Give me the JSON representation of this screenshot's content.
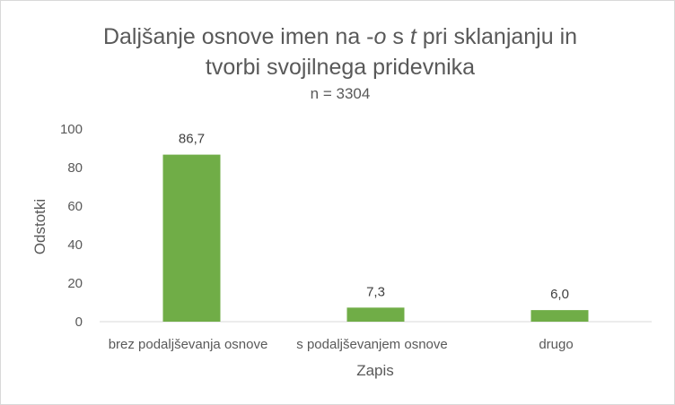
{
  "chart_data": {
    "type": "bar",
    "title_parts": [
      "Daljšanje osnove imen na -",
      "o",
      " s ",
      "t",
      " pri sklanjanju in",
      "tvorbi svojilnega pridevnika"
    ],
    "subtitle": "n = 3304",
    "xlabel": "Zapis",
    "ylabel": "Odstotki",
    "categories": [
      "brez podaljševanja osnove",
      "s podaljševanjem osnove",
      "drugo"
    ],
    "values": [
      86.7,
      7.3,
      6.0
    ],
    "data_labels": [
      "86,7",
      "7,3",
      "6,0"
    ],
    "ylim": [
      0,
      100
    ],
    "yticks": [
      0,
      20,
      40,
      60,
      80,
      100
    ],
    "grid": false,
    "legend": "none",
    "bar_color": "#70ad47"
  }
}
